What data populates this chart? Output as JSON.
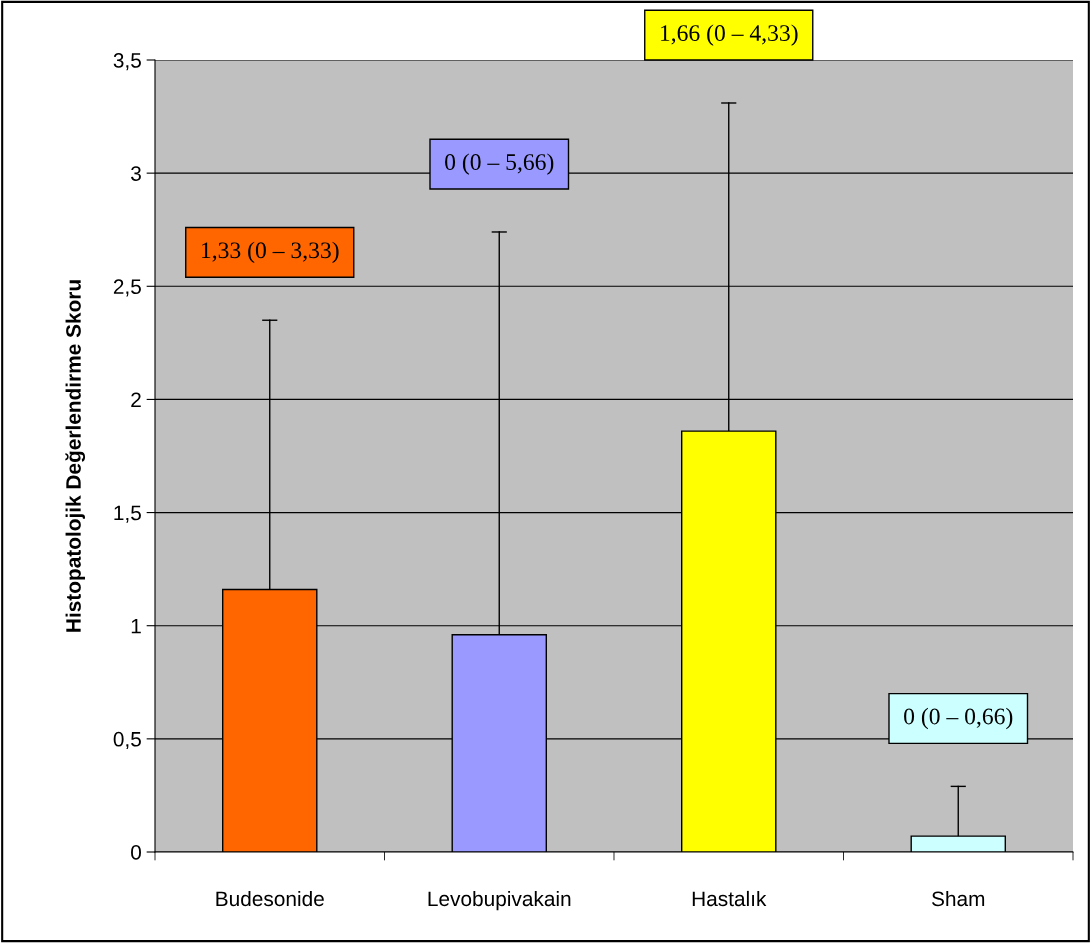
{
  "chart_data": {
    "type": "bar",
    "ylabel": "Histopatolojik Değerlendirme Skoru",
    "categories": [
      "Budesonide",
      "Levobupivakain",
      "Hastalık",
      "Sham"
    ],
    "values": [
      1.16,
      0.96,
      1.86,
      0.07
    ],
    "colors": [
      "#ff6600",
      "#9999ff",
      "#ffff00",
      "#ccffff"
    ],
    "errors": [
      [
        1.16,
        2.35
      ],
      [
        0.96,
        2.74
      ],
      [
        1.86,
        3.31
      ],
      [
        0.07,
        0.29
      ]
    ],
    "annotations": [
      "1,33 (0 – 3,33)",
      "0 (0 – 5,66)",
      "1,66 (0 – 4,33)",
      "0 (0 – 0,66)"
    ],
    "ylim": [
      0,
      3.5
    ],
    "yticks": [
      0,
      {
        "value": 0.5,
        "label": "0,5"
      },
      1,
      {
        "value": 1.5,
        "label": "1,5"
      },
      2,
      {
        "value": 2.5,
        "label": "2,5"
      },
      3,
      {
        "value": 3.5,
        "label": "3,5"
      }
    ],
    "grid": "y"
  }
}
